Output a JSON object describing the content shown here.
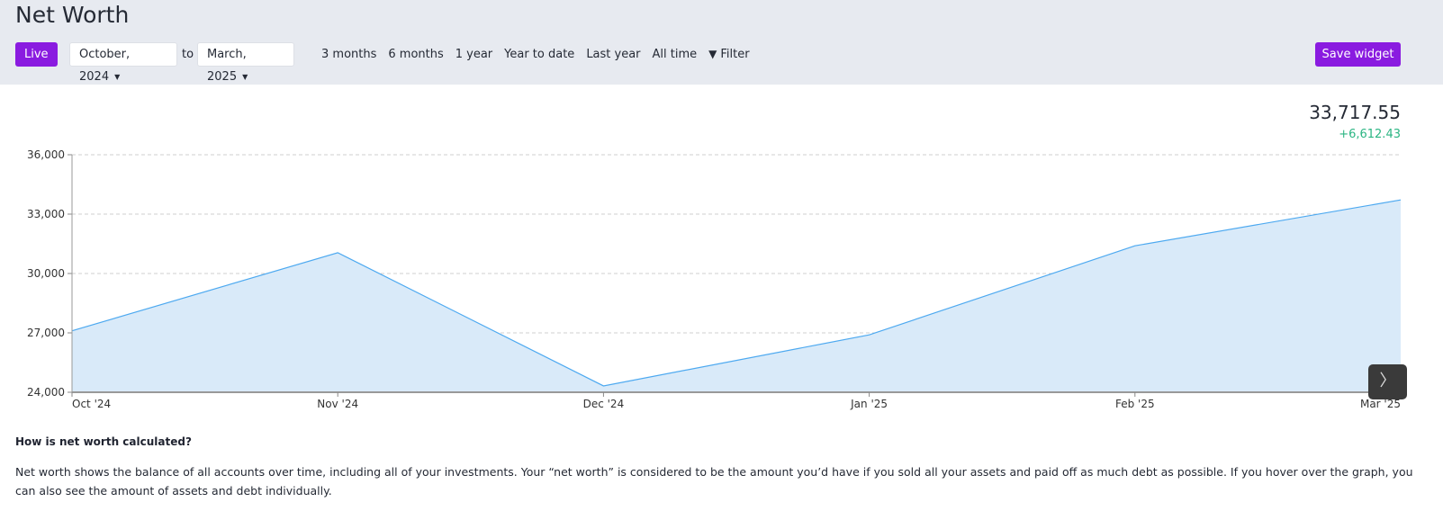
{
  "header": {
    "title": "Net Worth",
    "live_label": "Live",
    "from": "October, 2024",
    "to_label": "to",
    "to": "March, 2025",
    "ranges": [
      "3 months",
      "6 months",
      "1 year",
      "Year to date",
      "Last year",
      "All time"
    ],
    "filter_label": "Filter",
    "save_label": "Save widget"
  },
  "summary": {
    "total": "33,717.55",
    "change": "+6,612.43"
  },
  "chart_data": {
    "type": "area",
    "categories": [
      "Oct '24",
      "Nov '24",
      "Dec '24",
      "Jan '25",
      "Feb '25",
      "Mar '25"
    ],
    "values": [
      27105.12,
      31050,
      24320,
      26900,
      31400,
      33717.55
    ],
    "yticks": [
      "24,000",
      "27,000",
      "30,000",
      "33,000",
      "36,000"
    ],
    "ylim": [
      24000,
      36000
    ],
    "grid": true,
    "colors": {
      "line": "#4da9f0",
      "fill": "#d9eaf9"
    }
  },
  "info": {
    "question": "How is net worth calculated?",
    "text": "Net worth shows the balance of all accounts over time, including all of your investments. Your “net worth” is considered to be the amount you’d have if you sold all your assets and paid off as much debt as possible. If you hover over the graph, you can also see the amount of assets and debt individually."
  }
}
